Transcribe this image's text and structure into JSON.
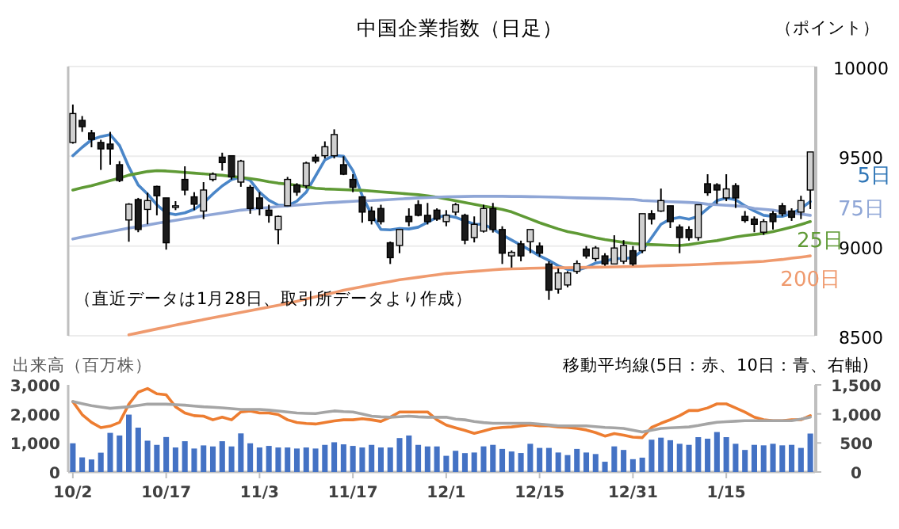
{
  "chart_data": [
    {
      "type": "candlestick",
      "title": "中国企業指数（日足）",
      "ylabel": "（ポイント）",
      "annotations": [
        "（直近データは1月28日、取引所データより作成）"
      ],
      "tick_labels": "y",
      "grid": "y",
      "categories": [
        null,
        null,
        null,
        null,
        null,
        null,
        null,
        null,
        null,
        null,
        null,
        null,
        null,
        null,
        null,
        null,
        null,
        null,
        null,
        null,
        null,
        null,
        null,
        null,
        null,
        null,
        null,
        null,
        null,
        null,
        null,
        null,
        null,
        null,
        null,
        null,
        null,
        null,
        null,
        null,
        null,
        null,
        null,
        null,
        null,
        null,
        null,
        null,
        null,
        null,
        null,
        null,
        null,
        null,
        null,
        null,
        null,
        null,
        null,
        null,
        null,
        null,
        null,
        null,
        null,
        null,
        null,
        null,
        null,
        null,
        null,
        null,
        null,
        null,
        null,
        null,
        null,
        null,
        null,
        null
      ],
      "ylim": [
        8500,
        10000
      ],
      "yticks": [
        8500,
        9000,
        9500,
        10000
      ],
      "ohlc": [
        [
          9577,
          9788,
          9570,
          9738
        ],
        [
          9700,
          9724,
          9636,
          9665
        ],
        [
          9630,
          9647,
          9550,
          9594
        ],
        [
          9577,
          9592,
          9424,
          9541
        ],
        [
          9568,
          9636,
          9453,
          9541
        ],
        [
          9453,
          9473,
          9356,
          9365
        ],
        [
          9145,
          9239,
          9024,
          9233
        ],
        [
          9259,
          9268,
          9077,
          9092
        ],
        [
          9204,
          9297,
          9121,
          9253
        ],
        [
          9332,
          9336,
          9171,
          9280
        ],
        [
          9268,
          9268,
          8980,
          9018
        ],
        [
          9215,
          9250,
          9200,
          9224
        ],
        [
          9371,
          9444,
          9283,
          9312
        ],
        [
          9274,
          9300,
          9200,
          9233
        ],
        [
          9195,
          9356,
          9150,
          9312
        ],
        [
          9371,
          9410,
          9360,
          9400
        ],
        [
          9495,
          9520,
          9420,
          9465
        ],
        [
          9503,
          9503,
          9370,
          9385
        ],
        [
          9356,
          9480,
          9330,
          9473
        ],
        [
          9327,
          9340,
          9180,
          9209
        ],
        [
          9268,
          9300,
          9171,
          9209
        ],
        [
          9200,
          9230,
          9130,
          9170
        ],
        [
          9092,
          9170,
          9010,
          9165
        ],
        [
          9224,
          9385,
          9224,
          9371
        ],
        [
          9340,
          9350,
          9280,
          9300
        ],
        [
          9336,
          9470,
          9320,
          9462
        ],
        [
          9495,
          9510,
          9460,
          9473
        ],
        [
          9503,
          9583,
          9488,
          9553
        ],
        [
          9503,
          9650,
          9488,
          9621
        ],
        [
          9453,
          9500,
          9395,
          9400
        ],
        [
          9371,
          9400,
          9300,
          9327
        ],
        [
          9274,
          9274,
          9130,
          9189
        ],
        [
          9195,
          9220,
          9120,
          9142
        ],
        [
          9209,
          9230,
          9120,
          9136
        ],
        [
          9018,
          9025,
          8900,
          8935
        ],
        [
          9003,
          9092,
          8960,
          9092
        ],
        [
          9165,
          9210,
          9110,
          9136
        ],
        [
          9230,
          9255,
          9165,
          9171
        ],
        [
          9171,
          9240,
          9120,
          9136
        ],
        [
          9200,
          9210,
          9140,
          9150
        ],
        [
          9136,
          9200,
          9110,
          9171
        ],
        [
          9189,
          9240,
          9170,
          9230
        ],
        [
          9171,
          9180,
          9010,
          9033
        ],
        [
          9047,
          9165,
          9020,
          9121
        ],
        [
          9083,
          9230,
          9075,
          9209
        ],
        [
          9209,
          9240,
          9075,
          9092
        ],
        [
          9092,
          9110,
          8900,
          8960
        ],
        [
          8945,
          8975,
          8880,
          8965
        ],
        [
          9012,
          9030,
          8915,
          8945
        ],
        [
          9024,
          9092,
          8960,
          9092
        ],
        [
          9000,
          9020,
          8940,
          8960
        ],
        [
          8900,
          8915,
          8700,
          8754
        ],
        [
          8760,
          8875,
          8735,
          8850
        ],
        [
          8783,
          8860,
          8770,
          8850
        ],
        [
          8859,
          8920,
          8845,
          8903
        ],
        [
          8983,
          9000,
          8930,
          8945
        ],
        [
          8930,
          9000,
          8915,
          8989
        ],
        [
          8945,
          8960,
          8890,
          8900
        ],
        [
          8900,
          9060,
          8900,
          8989
        ],
        [
          8915,
          9033,
          8900,
          9003
        ],
        [
          8974,
          9000,
          8890,
          8900
        ],
        [
          8974,
          9180,
          8960,
          9180
        ],
        [
          9180,
          9200,
          9120,
          9150
        ],
        [
          9195,
          9320,
          9190,
          9253
        ],
        [
          9224,
          9224,
          9100,
          9136
        ],
        [
          9106,
          9120,
          8960,
          9047
        ],
        [
          9092,
          9110,
          9030,
          9047
        ],
        [
          9047,
          9230,
          9030,
          9230
        ],
        [
          9347,
          9400,
          9280,
          9297
        ],
        [
          9341,
          9350,
          9235,
          9312
        ],
        [
          9268,
          9400,
          9250,
          9318
        ],
        [
          9336,
          9350,
          9212,
          9268
        ],
        [
          9165,
          9195,
          9130,
          9142
        ],
        [
          9150,
          9165,
          9077,
          9121
        ],
        [
          9077,
          9150,
          9062,
          9136
        ],
        [
          9180,
          9195,
          9092,
          9136
        ],
        [
          9224,
          9240,
          9165,
          9180
        ],
        [
          9195,
          9210,
          9140,
          9160
        ],
        [
          9189,
          9280,
          9150,
          9253
        ],
        [
          9312,
          9524,
          9206,
          9524
        ]
      ],
      "series": [
        {
          "name": "5日",
          "type": "line",
          "color": "#4a86c8",
          "values": [
            9503,
            9550,
            9592,
            9610,
            9621,
            9560,
            9440,
            9340,
            9290,
            9230,
            9185,
            9175,
            9185,
            9205,
            9240,
            9290,
            9335,
            9370,
            9385,
            9365,
            9300,
            9255,
            9228,
            9224,
            9250,
            9300,
            9390,
            9480,
            9505,
            9500,
            9420,
            9280,
            9175,
            9092,
            9090,
            9098,
            9095,
            9105,
            9132,
            9160,
            9171,
            9160,
            9140,
            9122,
            9121,
            9095,
            9062,
            9033,
            9005,
            8976,
            8945,
            8920,
            8890,
            8870,
            8865,
            8880,
            8905,
            8915,
            8930,
            8930,
            8935,
            8974,
            9047,
            9121,
            9150,
            9160,
            9150,
            9165,
            9209,
            9253,
            9268,
            9258,
            9224,
            9195,
            9171,
            9165,
            9165,
            9180,
            9209,
            9248
          ]
        },
        {
          "name": "25日",
          "type": "line",
          "color": "#5f9a35",
          "values": [
            9312,
            9325,
            9336,
            9350,
            9365,
            9378,
            9395,
            9405,
            9415,
            9420,
            9418,
            9414,
            9410,
            9406,
            9402,
            9398,
            9394,
            9388,
            9382,
            9376,
            9368,
            9358,
            9350,
            9345,
            9338,
            9330,
            9322,
            9318,
            9316,
            9314,
            9312,
            9310,
            9306,
            9302,
            9298,
            9294,
            9290,
            9286,
            9280,
            9272,
            9262,
            9252,
            9242,
            9232,
            9222,
            9214,
            9204,
            9190,
            9170,
            9150,
            9130,
            9112,
            9095,
            9080,
            9070,
            9058,
            9046,
            9036,
            9028,
            9020,
            9014,
            9010,
            9008,
            9006,
            9004,
            9003,
            9008,
            9016,
            9024,
            9030,
            9040,
            9050,
            9058,
            9064,
            9070,
            9080,
            9092,
            9105,
            9120,
            9136
          ]
        },
        {
          "name": "75日",
          "type": "line",
          "color": "#8fa6d6",
          "values": [
            9039,
            9050,
            9060,
            9070,
            9080,
            9090,
            9100,
            9108,
            9117,
            9126,
            9135,
            9143,
            9152,
            9160,
            9168,
            9176,
            9184,
            9192,
            9200,
            9205,
            9210,
            9215,
            9220,
            9224,
            9228,
            9232,
            9236,
            9240,
            9243,
            9246,
            9249,
            9252,
            9253,
            9256,
            9259,
            9262,
            9265,
            9268,
            9270,
            9272,
            9274,
            9275,
            9276,
            9277,
            9277,
            9277,
            9277,
            9276,
            9276,
            9275,
            9274,
            9273,
            9272,
            9270,
            9268,
            9267,
            9266,
            9265,
            9263,
            9261,
            9260,
            9253,
            9251,
            9249,
            9247,
            9245,
            9243,
            9240,
            9233,
            9230,
            9227,
            9224,
            9220,
            9209,
            9205,
            9200,
            9190,
            9184,
            9178,
            9171
          ]
        },
        {
          "name": "200日",
          "type": "line",
          "color": "#ef9a6e",
          "values": [
            null,
            null,
            null,
            null,
            null,
            null,
            8505,
            8516,
            8527,
            8538,
            8549,
            8560,
            8570,
            8580,
            8590,
            8600,
            8610,
            8620,
            8630,
            8640,
            8650,
            8660,
            8670,
            8680,
            8692,
            8705,
            8717,
            8729,
            8741,
            8754,
            8764,
            8774,
            8784,
            8793,
            8802,
            8812,
            8819,
            8826,
            8833,
            8840,
            8847,
            8851,
            8855,
            8859,
            8863,
            8867,
            8871,
            8873,
            8874,
            8876,
            8877,
            8878,
            8879,
            8879,
            8880,
            8881,
            8882,
            8883,
            8884,
            8885,
            8886,
            8887,
            8889,
            8891,
            8892,
            8894,
            8895,
            8897,
            8899,
            8902,
            8904,
            8906,
            8909,
            8912,
            8915,
            8920,
            8925,
            8932,
            8938,
            8945
          ]
        }
      ]
    },
    {
      "type": "bar",
      "ylabel": "出来高（百万株）",
      "annotations": [
        "移動平均線(5日：赤、10日：青、右軸)"
      ],
      "categories": [
        "10/2",
        null,
        null,
        null,
        null,
        null,
        null,
        null,
        null,
        null,
        "10/17",
        null,
        null,
        null,
        null,
        null,
        null,
        null,
        null,
        null,
        "11/3",
        null,
        null,
        null,
        null,
        null,
        null,
        null,
        null,
        null,
        "11/17",
        null,
        null,
        null,
        null,
        null,
        null,
        null,
        null,
        null,
        "12/1",
        null,
        null,
        null,
        null,
        null,
        null,
        null,
        null,
        null,
        "12/15",
        null,
        null,
        null,
        null,
        null,
        null,
        null,
        null,
        null,
        "12/31",
        null,
        null,
        null,
        null,
        null,
        null,
        null,
        null,
        null,
        "1/15",
        null,
        null,
        null,
        null,
        null,
        null,
        null,
        null,
        null
      ],
      "ylim": [
        0,
        3000
      ],
      "yticks": [
        {
          "value": 0,
          "label": "0"
        },
        {
          "value": 1000,
          "label": "1,000"
        },
        {
          "value": 2000,
          "label": "2,000"
        },
        {
          "value": 3000,
          "label": "3,000"
        }
      ],
      "y2lim": [
        0,
        1500
      ],
      "y2ticks": [
        {
          "value": 0,
          "label": "0"
        },
        {
          "value": 500,
          "label": "500"
        },
        {
          "value": 1000,
          "label": "1,000"
        },
        {
          "value": 1500,
          "label": "1,500"
        }
      ],
      "series": [
        {
          "type": "bar",
          "color": "#4472c4",
          "values": [
            988,
            503,
            431,
            665,
            1347,
            1257,
            1976,
            1527,
            1078,
            934,
            1204,
            844,
            1060,
            808,
            916,
            880,
            1060,
            880,
            1329,
            988,
            844,
            898,
            844,
            844,
            808,
            844,
            808,
            934,
            1024,
            952,
            898,
            844,
            934,
            844,
            844,
            1168,
            1257,
            934,
            880,
            880,
            557,
            730,
            650,
            671,
            882,
            935,
            794,
            706,
            653,
            971,
            829,
            829,
            671,
            582,
            794,
            671,
            618,
            353,
            882,
            759,
            441,
            494,
            1112,
            1182,
            1094,
            971,
            935,
            1200,
            1147,
            1376,
            1200,
            971,
            759,
            935,
            918,
            971,
            918,
            935,
            829,
            1323
          ]
        },
        {
          "type": "line",
          "axis": "y2",
          "color": "#ed7d31",
          "values": [
            1212,
            988,
            853,
            763,
            790,
            853,
            1168,
            1374,
            1437,
            1347,
            1329,
            1123,
            1015,
            970,
            961,
            898,
            943,
            898,
            1033,
            1051,
            1015,
            1015,
            988,
            898,
            853,
            835,
            826,
            853,
            880,
            898,
            898,
            916,
            898,
            871,
            943,
            1033,
            1033,
            1033,
            1033,
            898,
            808,
            760,
            715,
            665,
            706,
            750,
            768,
            776,
            794,
            812,
            794,
            794,
            776,
            768,
            750,
            724,
            679,
            618,
            662,
            635,
            600,
            591,
            768,
            838,
            900,
            971,
            1059,
            1059,
            1103,
            1173,
            1173,
            1103,
            1032,
            944,
            900,
            882,
            882,
            900,
            900,
            971
          ]
        },
        {
          "type": "line",
          "axis": "y2",
          "color": "#a5a5a5",
          "values": [
            1212,
            1175,
            1141,
            1118,
            1096,
            1110,
            1123,
            1145,
            1168,
            1168,
            1168,
            1160,
            1150,
            1135,
            1123,
            1115,
            1105,
            1090,
            1078,
            1078,
            1078,
            1065,
            1051,
            1033,
            1015,
            1010,
            1006,
            1030,
            1051,
            1040,
            1033,
            1000,
            961,
            950,
            943,
            952,
            961,
            950,
            943,
            943,
            943,
            910,
            898,
            870,
            850,
            838,
            838,
            838,
            838,
            838,
            825,
            810,
            794,
            794,
            794,
            794,
            780,
            768,
            760,
            750,
            720,
            688,
            720,
            750,
            760,
            768,
            776,
            800,
            830,
            856,
            865,
            875,
            882,
            882,
            882,
            882,
            882,
            882,
            910,
            944
          ]
        }
      ]
    }
  ]
}
